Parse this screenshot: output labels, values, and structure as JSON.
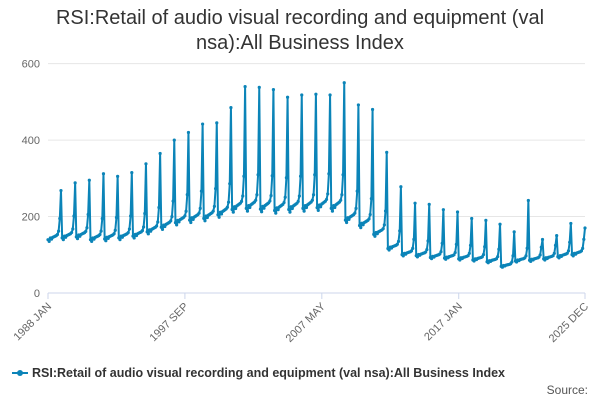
{
  "chart_data": {
    "type": "line",
    "title_lines": [
      "RSI:Retail of audio visual recording and equipment (val",
      "nsa):All Business Index"
    ],
    "xlabel": "",
    "ylabel": "",
    "x_tick_labels": [
      "1988 JAN",
      "1997 SEP",
      "2007 MAY",
      "2017 JAN",
      "2025 DEC"
    ],
    "y_ticks": [
      0,
      200,
      400,
      600
    ],
    "ylim": [
      0,
      620
    ],
    "grid": true,
    "legend_position": "bottom",
    "series": [
      {
        "name": "RSI:Retail of audio visual recording and equipment (val nsa):All Business Index",
        "color": "#0b84b8",
        "frequency": "monthly",
        "x_start": "1988 JAN",
        "x_end": "2025 DEC",
        "yearly_profile": [
          {
            "year": 1988,
            "base": 150,
            "peak": 268
          },
          {
            "year": 1989,
            "base": 155,
            "peak": 288
          },
          {
            "year": 1990,
            "base": 158,
            "peak": 295
          },
          {
            "year": 1991,
            "base": 150,
            "peak": 312
          },
          {
            "year": 1992,
            "base": 152,
            "peak": 305
          },
          {
            "year": 1993,
            "base": 155,
            "peak": 315
          },
          {
            "year": 1994,
            "base": 160,
            "peak": 338
          },
          {
            "year": 1995,
            "base": 172,
            "peak": 365
          },
          {
            "year": 1996,
            "base": 185,
            "peak": 400
          },
          {
            "year": 1997,
            "base": 198,
            "peak": 420
          },
          {
            "year": 1998,
            "base": 205,
            "peak": 442
          },
          {
            "year": 1999,
            "base": 210,
            "peak": 445
          },
          {
            "year": 2000,
            "base": 220,
            "peak": 485
          },
          {
            "year": 2001,
            "base": 235,
            "peak": 540
          },
          {
            "year": 2002,
            "base": 238,
            "peak": 538
          },
          {
            "year": 2003,
            "base": 236,
            "peak": 532
          },
          {
            "year": 2004,
            "base": 232,
            "peak": 512
          },
          {
            "year": 2005,
            "base": 235,
            "peak": 518
          },
          {
            "year": 2006,
            "base": 238,
            "peak": 520
          },
          {
            "year": 2007,
            "base": 240,
            "peak": 518
          },
          {
            "year": 2008,
            "base": 238,
            "peak": 550
          },
          {
            "year": 2009,
            "base": 205,
            "peak": 492
          },
          {
            "year": 2010,
            "base": 190,
            "peak": 480
          },
          {
            "year": 2011,
            "base": 165,
            "peak": 368
          },
          {
            "year": 2012,
            "base": 125,
            "peak": 278
          },
          {
            "year": 2013,
            "base": 108,
            "peak": 235
          },
          {
            "year": 2014,
            "base": 105,
            "peak": 232
          },
          {
            "year": 2015,
            "base": 100,
            "peak": 218
          },
          {
            "year": 2016,
            "base": 98,
            "peak": 212
          },
          {
            "year": 2017,
            "base": 96,
            "peak": 195
          },
          {
            "year": 2018,
            "base": 93,
            "peak": 190
          },
          {
            "year": 2019,
            "base": 88,
            "peak": 180
          },
          {
            "year": 2020,
            "base": 75,
            "peak": 160
          },
          {
            "year": 2021,
            "base": 90,
            "peak": 242
          },
          {
            "year": 2022,
            "base": 92,
            "peak": 140
          },
          {
            "year": 2023,
            "base": 96,
            "peak": 150
          },
          {
            "year": 2024,
            "base": 102,
            "peak": 182
          },
          {
            "year": 2025,
            "base": 108,
            "peak": 170
          }
        ]
      }
    ]
  },
  "legend": {
    "label": "RSI:Retail of audio visual recording and equipment (val nsa):All Business Index"
  },
  "footer": {
    "source_label": "Source:"
  }
}
